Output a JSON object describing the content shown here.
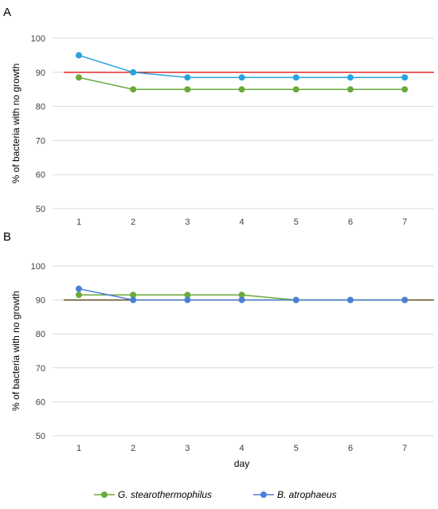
{
  "chart_data": [
    {
      "type": "line",
      "panel_label": "A",
      "categories": [
        "1",
        "2",
        "3",
        "4",
        "5",
        "6",
        "7"
      ],
      "series": [
        {
          "name": "G. stearothermophilus",
          "color": "#6aaa3a",
          "values": [
            88.5,
            85,
            85,
            85,
            85,
            85,
            85
          ]
        },
        {
          "name": "B. atrophaeus",
          "color": "#29a3dc",
          "values": [
            95,
            90,
            88.5,
            88.5,
            88.5,
            88.5,
            88.5
          ]
        }
      ],
      "reference_line": {
        "y": 90,
        "color": "#e8282b"
      },
      "ylabel": "% of bacteria with no growth",
      "xlabel": "",
      "ylim": [
        50,
        100
      ],
      "yticks": [
        "50",
        "60",
        "70",
        "80",
        "90",
        "100"
      ],
      "grid": true
    },
    {
      "type": "line",
      "panel_label": "B",
      "categories": [
        "1",
        "2",
        "3",
        "4",
        "5",
        "6",
        "7"
      ],
      "series": [
        {
          "name": "G. stearothermophilus",
          "color": "#6aaa3a",
          "values": [
            91.5,
            91.5,
            91.5,
            91.5,
            90,
            90,
            90
          ]
        },
        {
          "name": "B. atrophaeus",
          "color": "#4a7fd6",
          "values": [
            93.3,
            90,
            90,
            90,
            90,
            90,
            90
          ]
        }
      ],
      "reference_line": {
        "y": 90,
        "color": "#5a4a1a"
      },
      "ylabel": "% of bacteria with no growth",
      "xlabel": "day",
      "ylim": [
        50,
        100
      ],
      "yticks": [
        "50",
        "60",
        "70",
        "80",
        "90",
        "100"
      ],
      "grid": true
    }
  ],
  "legend": {
    "placement": "bottom",
    "items": [
      {
        "label": "G. stearothermophilus",
        "color": "#6aaa3a"
      },
      {
        "label": "B. atrophaeus",
        "color": "#4a7fd6"
      }
    ]
  }
}
